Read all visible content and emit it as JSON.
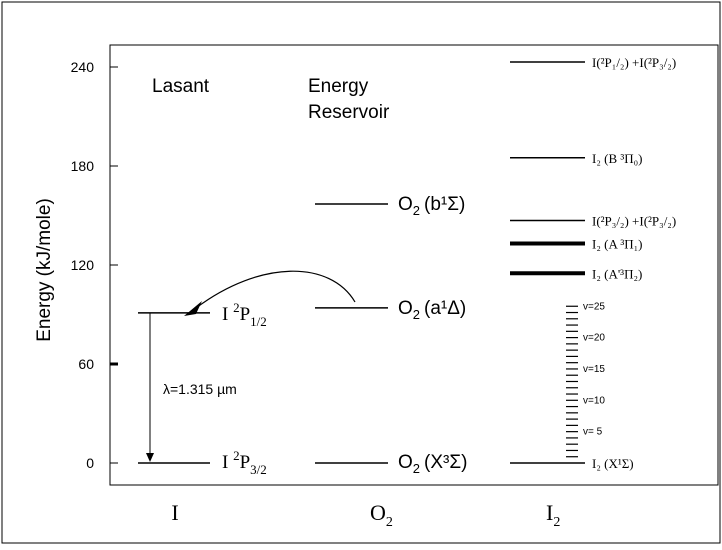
{
  "axis": {
    "ylabel": "Energy (kJ/mole)",
    "ticks": [
      {
        "value": 0,
        "label": "0"
      },
      {
        "value": 60,
        "label": "60"
      },
      {
        "value": 120,
        "label": "120"
      },
      {
        "value": 180,
        "label": "180"
      },
      {
        "value": 240,
        "label": "240"
      }
    ],
    "ylim": [
      0,
      255
    ]
  },
  "columns": {
    "I": {
      "label": "I"
    },
    "O2": {
      "label_main": "O",
      "label_sub": "2"
    },
    "I2": {
      "label_main": "I",
      "label_sub": "2"
    }
  },
  "headings": {
    "lasant": "Lasant",
    "reservoir_line1": "Energy",
    "reservoir_line2": "Reservoir"
  },
  "iodine_levels": {
    "upper": {
      "energy": 91,
      "label_main": "I ",
      "label_sup": "2",
      "label_mid": "P",
      "label_sub": "1/2"
    },
    "lower": {
      "energy": 0,
      "label_main": "I ",
      "label_sup": "2",
      "label_mid": "P",
      "label_sub": "3/2"
    },
    "transition_label": "λ=1.315 µm"
  },
  "oxygen_levels": {
    "b": {
      "energy": 157,
      "label": "(b¹Σ)"
    },
    "a": {
      "energy": 94,
      "label": "(a¹Δ)"
    },
    "X": {
      "energy": 0,
      "label": "(X³Σ)"
    }
  },
  "i2_levels": {
    "asymptote_upper": {
      "energy": 243,
      "label": "I(²P₁/₂) +I(²P₃/₂)"
    },
    "B": {
      "energy": 185,
      "label": "I₂ (B ³Π₀)"
    },
    "asymptote_lower": {
      "energy": 147,
      "label": "I(²P₃/₂) +I(²P₃/₂)"
    },
    "A": {
      "energy": 133,
      "label": "I₂ (A ³Π₁)"
    },
    "A_prime": {
      "energy": 115,
      "label": "I₂ (A'³Π₂)"
    },
    "X": {
      "energy": 0,
      "label": "I₂ (X¹Σ)"
    }
  },
  "vibrational": {
    "v_max": 25,
    "top_energy": 95,
    "labels": [
      "v=25",
      "v=20",
      "v=15",
      "v=10",
      "v= 5"
    ]
  }
}
